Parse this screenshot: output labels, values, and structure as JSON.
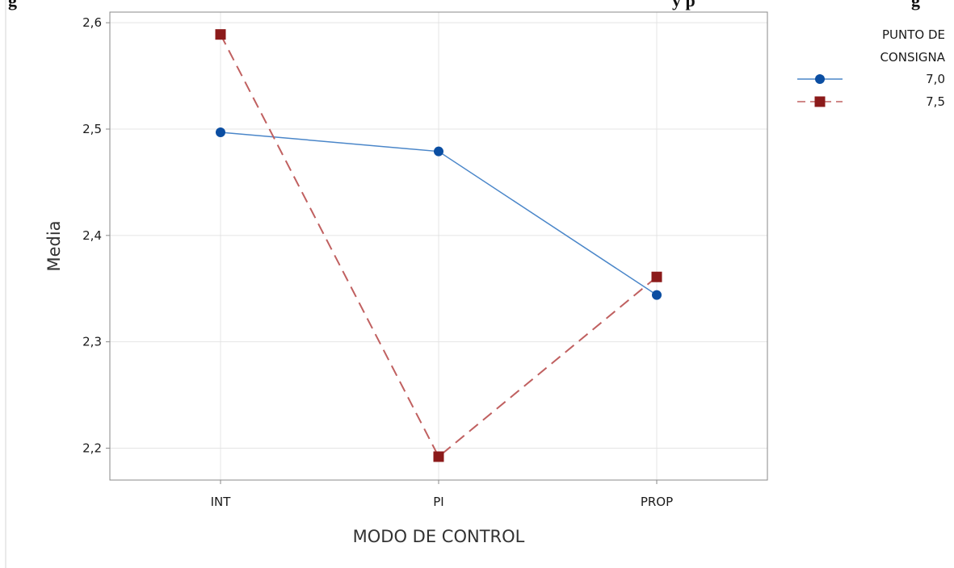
{
  "top_text_fragments": [
    "g",
    "y p",
    "g"
  ],
  "chart_data": {
    "type": "line",
    "categories": [
      "INT",
      "PI",
      "PROP"
    ],
    "series": [
      {
        "name": "7,0",
        "values": [
          2.497,
          2.479,
          2.344
        ],
        "color": "#0b4ea2",
        "marker": "circle",
        "line_style": "solid",
        "line_color": "#4a86c9"
      },
      {
        "name": "7,5",
        "values": [
          2.589,
          2.192,
          2.361
        ],
        "color": "#8b1a1a",
        "marker": "square",
        "line_style": "dashed",
        "line_color": "#c06060"
      }
    ],
    "title": "",
    "xlabel": "MODO DE CONTROL",
    "ylabel": "Media",
    "ylim": [
      2.17,
      2.61
    ],
    "yticks": [
      "2,2",
      "2,3",
      "2,4",
      "2,5",
      "2,6"
    ],
    "ytick_values": [
      2.2,
      2.3,
      2.4,
      2.5,
      2.6
    ],
    "grid": true,
    "legend": {
      "title_lines": [
        "PUNTO DE",
        "CONSIGNA"
      ],
      "placement": "right"
    }
  }
}
